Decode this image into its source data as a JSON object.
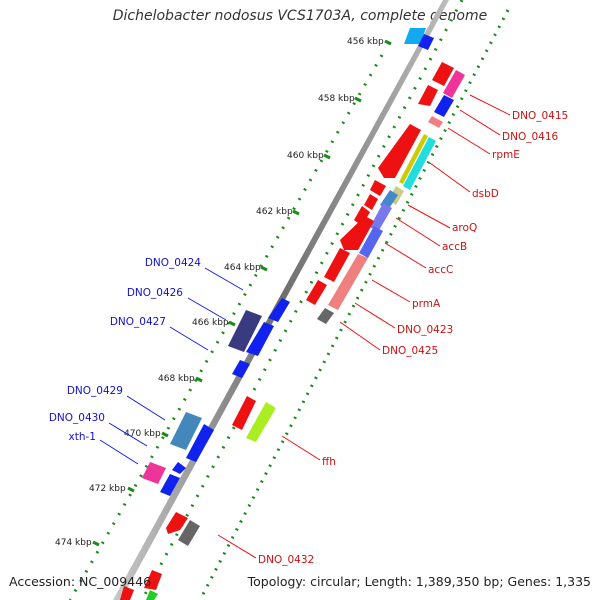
{
  "title": "Dichelobacter nodosus VCS1703A, complete genome",
  "footer": {
    "accession": "Accession: NC_009446",
    "topology": "Topology: circular; Length: 1,389,350 bp; Genes: 1,335"
  },
  "ruler_labels": [
    "456 kbp",
    "458 kbp",
    "460 kbp",
    "462 kbp",
    "464 kbp",
    "466 kbp",
    "468 kbp",
    "470 kbp",
    "472 kbp",
    "474 kbp"
  ],
  "left_gene_labels": [
    "DNO_0424",
    "DNO_0426",
    "DNO_0427",
    "DNO_0429",
    "DNO_0430",
    "xth-1"
  ],
  "right_gene_labels": [
    "DNO_0415",
    "DNO_0416",
    "rpmE",
    "dsbD",
    "aroQ",
    "accB",
    "accC",
    "prmA",
    "DNO_0423",
    "DNO_0425",
    "ffh",
    "DNO_0432"
  ],
  "colors": {
    "forward_strand_genes": "#ee1111",
    "reverse_strand_genes": "#1122ee",
    "forward_label": "#cc1111",
    "reverse_label": "#1111cc",
    "backbone": "#808080",
    "ruler_dots": "#1a8a1a"
  }
}
